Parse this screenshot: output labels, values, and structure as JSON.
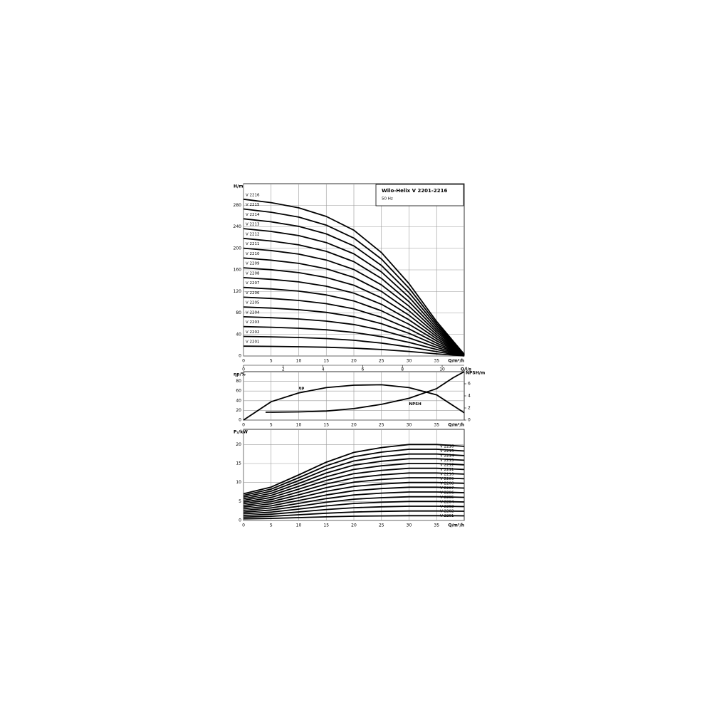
{
  "chart_data": [
    {
      "type": "line",
      "title": "Wilo-Helix V 2201-2216",
      "subtitle": "50 Hz",
      "ylabel": "H/m",
      "xlabel": "Q/m³/h",
      "x2label": "Q/l/s",
      "xlim": [
        0,
        40
      ],
      "xticks": [
        0,
        5,
        10,
        15,
        20,
        25,
        30,
        35
      ],
      "x2lim": [
        0,
        11.11
      ],
      "x2ticks": [
        0,
        2,
        4,
        6,
        8,
        10
      ],
      "ylim": [
        0,
        320
      ],
      "yticks": [
        0,
        40,
        80,
        120,
        160,
        200,
        240,
        280
      ],
      "grid": true,
      "legend": "left",
      "color": "#000000",
      "x": [
        0,
        5,
        10,
        15,
        20,
        25,
        30,
        35,
        40
      ],
      "series": [
        {
          "name": "V 2201",
          "values": [
            18.2,
            17.8,
            17.2,
            16.2,
            14.6,
            12,
            8.4,
            4,
            0.2
          ]
        },
        {
          "name": "V 2202",
          "values": [
            36.4,
            35.6,
            34.4,
            32.4,
            29.2,
            24,
            16.8,
            8,
            0.4
          ]
        },
        {
          "name": "V 2203",
          "values": [
            54.6,
            53.4,
            51.6,
            48.6,
            43.8,
            36,
            25.2,
            12,
            0.6
          ]
        },
        {
          "name": "V 2204",
          "values": [
            72.8,
            71.2,
            68.8,
            64.8,
            58.4,
            48,
            33.6,
            16,
            0.8
          ]
        },
        {
          "name": "V 2205",
          "values": [
            91,
            89,
            86,
            81,
            73,
            60,
            42,
            20,
            1
          ]
        },
        {
          "name": "V 2206",
          "values": [
            109.2,
            106.8,
            103.2,
            97.2,
            87.6,
            72,
            50.4,
            24,
            1.2
          ]
        },
        {
          "name": "V 2207",
          "values": [
            127.4,
            124.6,
            120.4,
            113.4,
            102.2,
            84,
            58.8,
            28,
            1.4
          ]
        },
        {
          "name": "V 2208",
          "values": [
            145.6,
            142.4,
            137.6,
            129.6,
            116.8,
            96,
            67.2,
            32,
            1.6
          ]
        },
        {
          "name": "V 2209",
          "values": [
            163.8,
            160.2,
            154.8,
            145.8,
            131.4,
            108,
            75.6,
            36,
            1.8
          ]
        },
        {
          "name": "V 2210",
          "values": [
            182,
            178,
            172,
            162,
            146,
            120,
            84,
            40,
            2
          ]
        },
        {
          "name": "V 2211",
          "values": [
            200.2,
            195.8,
            189.2,
            178.2,
            160.6,
            132,
            92.4,
            44,
            2.2
          ]
        },
        {
          "name": "V 2212",
          "values": [
            218.4,
            213.6,
            206.4,
            194.4,
            175.2,
            144,
            100.8,
            48,
            2.4
          ]
        },
        {
          "name": "V 2213",
          "values": [
            236.6,
            231.4,
            223.6,
            210.6,
            189.8,
            156,
            109.2,
            52,
            2.6
          ]
        },
        {
          "name": "V 2214",
          "values": [
            254.8,
            249.2,
            240.8,
            226.8,
            204.4,
            168,
            117.6,
            56,
            2.8
          ]
        },
        {
          "name": "V 2215",
          "values": [
            273,
            267,
            258,
            243,
            219,
            180,
            126,
            60,
            3
          ]
        },
        {
          "name": "V 2216",
          "values": [
            291.2,
            284.8,
            275.2,
            259.2,
            233.6,
            192,
            134.4,
            64,
            3.2
          ]
        }
      ]
    },
    {
      "type": "line",
      "ylabel": "ηp/%",
      "y2label": "NPSH/m",
      "xlabel": "Q/m³/h",
      "xlim": [
        0,
        40
      ],
      "xticks": [
        0,
        5,
        10,
        15,
        20,
        25,
        30,
        35
      ],
      "ylim": [
        0,
        100
      ],
      "yticks": [
        0,
        20,
        40,
        60,
        80
      ],
      "y2lim": [
        0,
        8
      ],
      "y2ticks": [
        0,
        2,
        4,
        6
      ],
      "grid": true,
      "legend": "inline",
      "color": "#000000",
      "x": [
        0,
        5,
        10,
        15,
        20,
        25,
        30,
        35,
        40
      ],
      "series": [
        {
          "name": "ηp",
          "values": [
            0,
            38,
            56,
            67,
            72,
            73,
            67,
            52,
            15
          ]
        },
        {
          "name": "NPSH",
          "axis": "y2",
          "x": [
            4,
            10,
            15,
            20,
            25,
            30,
            35,
            38,
            40
          ],
          "values": [
            1.3,
            1.35,
            1.5,
            1.9,
            2.6,
            3.6,
            5.2,
            7,
            8
          ]
        }
      ]
    },
    {
      "type": "line",
      "ylabel": "P₂/kW",
      "xlabel": "Q/m³/h",
      "xlim": [
        0,
        40
      ],
      "xticks": [
        0,
        5,
        10,
        15,
        20,
        25,
        30,
        35
      ],
      "ylim": [
        0,
        24
      ],
      "yticks": [
        0,
        5,
        10,
        15,
        20
      ],
      "grid": true,
      "legend": "right",
      "color": "#000000",
      "x": [
        0,
        5,
        10,
        15,
        20,
        25,
        30,
        35,
        40
      ],
      "series": [
        {
          "name": "V 2201",
          "values": [
            0.44,
            0.55,
            0.75,
            0.96,
            1.12,
            1.2,
            1.25,
            1.25,
            1.22
          ]
        },
        {
          "name": "V 2202",
          "values": [
            0.88,
            1.1,
            1.5,
            1.92,
            2.24,
            2.4,
            2.5,
            2.5,
            2.44
          ]
        },
        {
          "name": "V 2203",
          "values": [
            1.32,
            1.65,
            2.25,
            2.88,
            3.36,
            3.6,
            3.75,
            3.75,
            3.66
          ]
        },
        {
          "name": "V 2204",
          "values": [
            1.76,
            2.2,
            3,
            3.84,
            4.48,
            4.8,
            5,
            5,
            4.88
          ]
        },
        {
          "name": "V 2205",
          "values": [
            2.2,
            2.75,
            3.75,
            4.8,
            5.6,
            6,
            6.25,
            6.25,
            6.1
          ]
        },
        {
          "name": "V 2206",
          "values": [
            2.64,
            3.3,
            4.5,
            5.76,
            6.72,
            7.2,
            7.5,
            7.5,
            7.32
          ]
        },
        {
          "name": "V 2207",
          "values": [
            3.08,
            3.85,
            5.25,
            6.72,
            7.84,
            8.4,
            8.75,
            8.75,
            8.54
          ]
        },
        {
          "name": "V 2208",
          "values": [
            3.52,
            4.4,
            6,
            7.68,
            8.96,
            9.6,
            10,
            10,
            9.76
          ]
        },
        {
          "name": "V 2209",
          "values": [
            3.96,
            4.95,
            6.75,
            8.64,
            10.08,
            10.8,
            11.25,
            11.25,
            10.98
          ]
        },
        {
          "name": "V 2210",
          "values": [
            4.4,
            5.5,
            7.5,
            9.6,
            11.2,
            12,
            12.5,
            12.5,
            12.2
          ]
        },
        {
          "name": "V 2211",
          "values": [
            4.84,
            6.05,
            8.25,
            10.56,
            12.32,
            13.2,
            13.75,
            13.75,
            13.42
          ]
        },
        {
          "name": "V 2212",
          "values": [
            5.28,
            6.6,
            9,
            11.52,
            13.44,
            14.4,
            15,
            15,
            14.64
          ]
        },
        {
          "name": "V 2213",
          "values": [
            5.72,
            7.15,
            9.75,
            12.48,
            14.56,
            15.6,
            16.25,
            16.25,
            15.86
          ]
        },
        {
          "name": "V 2214",
          "values": [
            6.16,
            7.7,
            10.5,
            13.44,
            15.68,
            16.8,
            17.5,
            17.5,
            17.08
          ]
        },
        {
          "name": "V 2215",
          "values": [
            6.6,
            8.25,
            11.25,
            14.4,
            16.8,
            18,
            18.75,
            18.75,
            18.3
          ]
        },
        {
          "name": "V 2216",
          "values": [
            7.04,
            8.8,
            12,
            15.36,
            17.92,
            19.2,
            20,
            20,
            19.52
          ]
        }
      ]
    }
  ]
}
